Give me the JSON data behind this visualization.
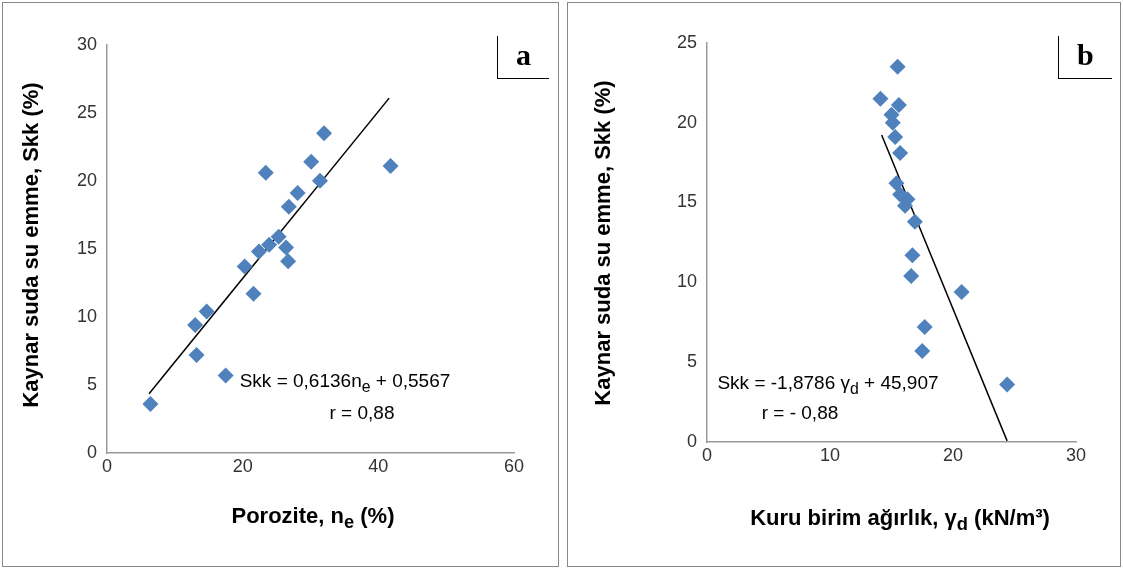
{
  "chart_data": [
    {
      "type": "scatter",
      "xlabel": "Porozite, n$_{e}$ (%)",
      "ylabel": "Kaynar suda su emme, Skk (%)",
      "annotations": [
        "a",
        "Skk = 0,6136n$_{e}$ + 0,5567",
        "r = 0,88"
      ],
      "xlim": [
        0,
        60
      ],
      "xticks": [
        0,
        20,
        40,
        60
      ],
      "ylim": [
        0,
        30
      ],
      "yticks": [
        0,
        5,
        10,
        15,
        20,
        25,
        30
      ],
      "grid": false,
      "legend": false,
      "marker": "diamond",
      "series": [
        {
          "color": "#4f81bd",
          "x": [
            6.4,
            13.2,
            17.5,
            13.0,
            14.7,
            21.6,
            20.3,
            22.4,
            23.9,
            25.3,
            26.4,
            26.7,
            26.8,
            28.1,
            23.4,
            30.1,
            31.4,
            32.0,
            41.8
          ],
          "values": [
            3.6,
            7.2,
            5.7,
            9.4,
            10.4,
            11.7,
            13.7,
            14.8,
            15.3,
            15.9,
            15.1,
            14.1,
            18.1,
            19.1,
            20.6,
            21.4,
            20.0,
            23.5,
            21.1
          ]
        },
        {
          "type": "line",
          "color": "#000000",
          "marker": "none",
          "x": [
            6.2,
            41.6
          ],
          "values": [
            4.36,
            26.08
          ]
        }
      ]
    },
    {
      "type": "scatter",
      "xlabel": "Kuru birim ağırlık, γ$_{d}$  (kN/m³)",
      "ylabel": "Kaynar suda su emme, Skk (%)",
      "annotations": [
        "b",
        "Skk = -1,8786 γ$_{d}$ + 45,907",
        "r = - 0,88"
      ],
      "xlim": [
        0,
        30
      ],
      "xticks": [
        0,
        10,
        20,
        30
      ],
      "ylim": [
        0,
        25
      ],
      "yticks": [
        0,
        5,
        10,
        15,
        20,
        25
      ],
      "grid": false,
      "legend": false,
      "marker": "diamond",
      "series": [
        {
          "color": "#4f81bd",
          "x": [
            15.5,
            14.1,
            15.6,
            15.0,
            15.1,
            15.3,
            15.7,
            15.4,
            15.7,
            16.3,
            16.1,
            16.9,
            16.7,
            16.6,
            20.7,
            17.7,
            17.5,
            24.4
          ],
          "values": [
            23.5,
            21.5,
            21.1,
            20.5,
            20.0,
            19.1,
            18.1,
            16.2,
            15.5,
            15.2,
            14.8,
            13.8,
            11.7,
            10.4,
            9.4,
            7.2,
            5.7,
            3.6
          ]
        },
        {
          "type": "line",
          "color": "#000000",
          "marker": "none",
          "x": [
            14.2,
            24.4
          ],
          "values": [
            19.23,
            0.07
          ]
        }
      ]
    }
  ]
}
